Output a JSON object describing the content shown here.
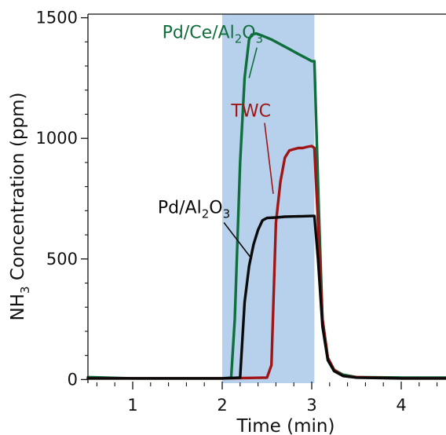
{
  "chart_data": {
    "type": "line",
    "xlabel": "Time (min)",
    "ylabel": {
      "main": "NH",
      "sub": "3",
      "rest": " Concentration (ppm)"
    },
    "xlim": [
      0.5,
      4.5
    ],
    "ylim": [
      -15,
      1515
    ],
    "x_ticks": [
      {
        "value": 1,
        "label": "1"
      },
      {
        "value": 2,
        "label": "2"
      },
      {
        "value": 3,
        "label": "3"
      },
      {
        "value": 4,
        "label": "4"
      }
    ],
    "x_minor_step": 0.2,
    "y_ticks": [
      {
        "value": 0,
        "label": "0"
      },
      {
        "value": 500,
        "label": "500"
      },
      {
        "value": 1000,
        "label": "1000"
      },
      {
        "value": 1500,
        "label": "1500"
      }
    ],
    "y_minor_step": 100,
    "shaded_region": {
      "x_start": 2.0,
      "x_end": 3.03,
      "color": "#b7d1ec"
    },
    "series": [
      {
        "name": {
          "parts": [
            [
              "Pd/Ce/Al",
              false
            ],
            [
              "2",
              true
            ],
            [
              "O",
              false
            ],
            [
              "3",
              true
            ]
          ]
        },
        "color": "#0f6f3c",
        "label_anchor": [
          2.3,
          1250
        ],
        "label_text_pos": [
          1.33,
          1415
        ],
        "x": [
          0.5,
          1.0,
          1.5,
          2.0,
          2.1,
          2.14,
          2.2,
          2.25,
          2.3,
          2.33,
          2.38,
          2.45,
          2.55,
          2.65,
          2.75,
          2.85,
          2.95,
          3.0,
          3.03,
          3.08,
          3.12,
          3.18,
          3.25,
          3.35,
          3.5,
          4.0,
          4.5
        ],
        "y": [
          10,
          5,
          5,
          5,
          8,
          250,
          900,
          1250,
          1410,
          1430,
          1435,
          1425,
          1410,
          1390,
          1370,
          1350,
          1330,
          1320,
          1320,
          700,
          250,
          90,
          40,
          20,
          10,
          8,
          8
        ]
      },
      {
        "name": {
          "parts": [
            [
              "TWC",
              false
            ]
          ]
        },
        "color": "#a01515",
        "label_anchor": [
          2.57,
          770
        ],
        "label_text_pos": [
          2.1,
          1090
        ],
        "x": [
          0.5,
          1.0,
          1.5,
          2.0,
          2.5,
          2.55,
          2.6,
          2.65,
          2.7,
          2.75,
          2.8,
          2.85,
          2.9,
          2.95,
          3.0,
          3.03,
          3.07,
          3.12,
          3.18,
          3.25,
          3.35,
          3.5,
          4.0,
          4.5
        ],
        "y": [
          5,
          5,
          5,
          5,
          8,
          60,
          650,
          820,
          920,
          950,
          955,
          960,
          960,
          965,
          968,
          960,
          650,
          250,
          90,
          40,
          15,
          10,
          5,
          5
        ]
      },
      {
        "name": {
          "parts": [
            [
              "Pd/Al",
              false
            ],
            [
              "2",
              true
            ],
            [
              "O",
              false
            ],
            [
              "3",
              true
            ]
          ]
        },
        "color": "#0a0a0a",
        "label_anchor": [
          2.31,
          510
        ],
        "label_text_pos": [
          1.28,
          690
        ],
        "x": [
          0.5,
          1.0,
          1.5,
          2.0,
          2.2,
          2.25,
          2.3,
          2.35,
          2.4,
          2.45,
          2.5,
          2.6,
          2.7,
          2.8,
          2.9,
          3.0,
          3.03,
          3.07,
          3.12,
          3.18,
          3.25,
          3.35,
          3.5,
          4.0,
          4.5
        ],
        "y": [
          5,
          5,
          5,
          5,
          8,
          320,
          470,
          560,
          620,
          660,
          670,
          672,
          675,
          676,
          677,
          678,
          678,
          500,
          220,
          80,
          35,
          15,
          8,
          5,
          5
        ]
      }
    ]
  }
}
